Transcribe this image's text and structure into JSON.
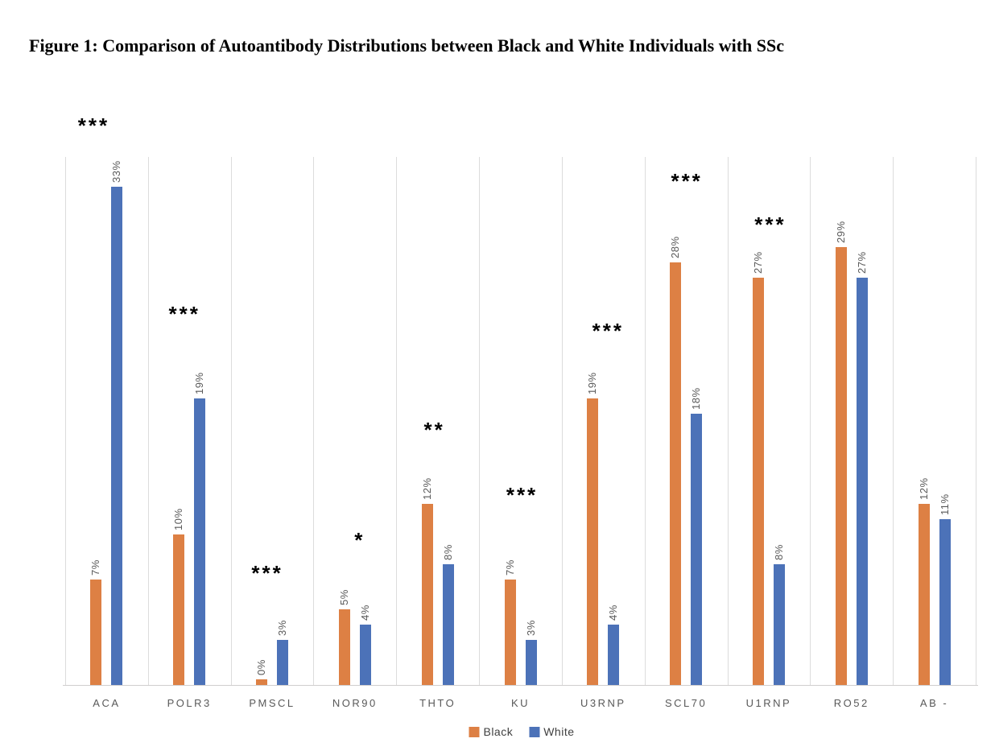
{
  "figure_title": "Figure 1: Comparison of Autoantibody Distributions between Black and White Individuals with SSc",
  "chart_data": {
    "type": "bar",
    "title": "Figure 1: Comparison of Autoantibody Distributions between Black and White Individuals with SSc",
    "categories": [
      "ACA",
      "POLR3",
      "PMSCL",
      "NOR90",
      "THTO",
      "KU",
      "U3RNP",
      "SCL70",
      "U1RNP",
      "RO52",
      "AB -"
    ],
    "series": [
      {
        "name": "Black",
        "color": "#DD8044",
        "values": [
          7,
          10,
          0,
          5,
          12,
          7,
          19,
          28,
          27,
          29,
          12
        ],
        "labels": [
          "7%",
          "10%",
          "0%",
          "5%",
          "12%",
          "7%",
          "19%",
          "28%",
          "27%",
          "29%",
          "12%"
        ]
      },
      {
        "name": "White",
        "color": "#4C72B8",
        "values": [
          33,
          19,
          3,
          4,
          8,
          3,
          4,
          18,
          8,
          27,
          11
        ],
        "labels": [
          "33%",
          "19%",
          "3%",
          "4%",
          "8%",
          "3%",
          "4%",
          "18%",
          "8%",
          "27%",
          "11%"
        ]
      }
    ],
    "annotations": [
      {
        "category": "ACA",
        "text": "***",
        "y_value": 37.2,
        "x_offset": -16
      },
      {
        "category": "POLR3",
        "text": "***",
        "y_value": 24.7,
        "x_offset": -6
      },
      {
        "category": "PMSCL",
        "text": "***",
        "y_value": 7.5,
        "x_offset": -6
      },
      {
        "category": "NOR90",
        "text": "*",
        "y_value": 9.7,
        "x_offset": 6
      },
      {
        "category": "THTO",
        "text": "**",
        "y_value": 17.0,
        "x_offset": -4
      },
      {
        "category": "KU",
        "text": "***",
        "y_value": 12.7,
        "x_offset": 2
      },
      {
        "category": "U3RNP",
        "text": "***",
        "y_value": 23.6,
        "x_offset": 6
      },
      {
        "category": "SCL70",
        "text": "***",
        "y_value": 33.5,
        "x_offset": 1
      },
      {
        "category": "U1RNP",
        "text": "***",
        "y_value": 30.6,
        "x_offset": 2
      }
    ],
    "xlabel": "",
    "ylabel": "",
    "ylim": [
      0,
      35
    ],
    "grid": "vertical-category-boundaries-only",
    "legend": {
      "position": "bottom-center",
      "entries": [
        {
          "label": "Black",
          "color": "#DD8044"
        },
        {
          "label": "White",
          "color": "#4C72B8"
        }
      ]
    },
    "colors": {
      "value_label": "#595959",
      "category_label": "#595959",
      "gridline": "#DCDCDC",
      "axis_line": "#D0CECE",
      "annotation": "#000000",
      "legend_text": "#404040",
      "background": "#FFFFFF"
    }
  }
}
